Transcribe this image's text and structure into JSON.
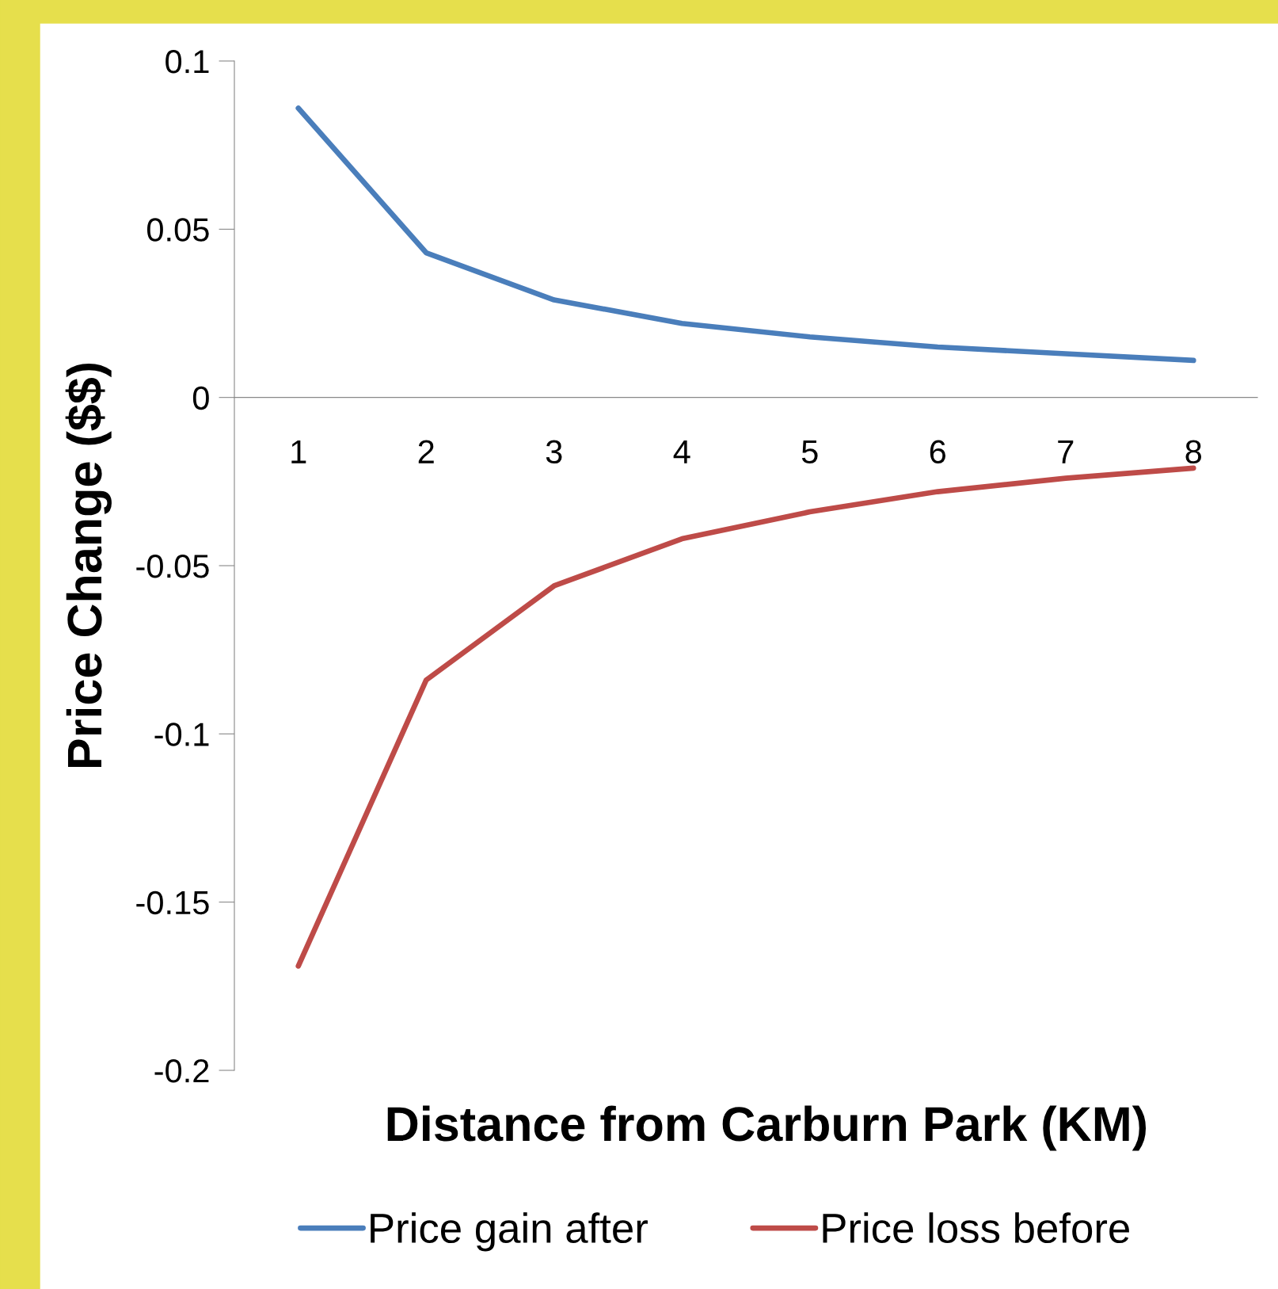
{
  "chart_data": {
    "type": "line",
    "xlabel": "Distance from Carburn Park (KM)",
    "ylabel": "Price Change ($$)",
    "categories": [
      "1",
      "2",
      "3",
      "4",
      "5",
      "6",
      "7",
      "8"
    ],
    "series": [
      {
        "name": "Price gain after",
        "color": "#4a7ebb",
        "values": [
          0.086,
          0.043,
          0.029,
          0.022,
          0.018,
          0.015,
          0.013,
          0.011
        ]
      },
      {
        "name": "Price loss before",
        "color": "#be4b48",
        "values": [
          -0.169,
          -0.084,
          -0.056,
          -0.042,
          -0.034,
          -0.028,
          -0.024,
          -0.021
        ]
      }
    ],
    "ylim": [
      -0.2,
      0.1
    ],
    "yticks": [
      -0.2,
      -0.15,
      -0.1,
      -0.05,
      0,
      0.05,
      0.1
    ],
    "grid": false,
    "legend": "bottom",
    "marker": "none",
    "line_style": "solid"
  }
}
